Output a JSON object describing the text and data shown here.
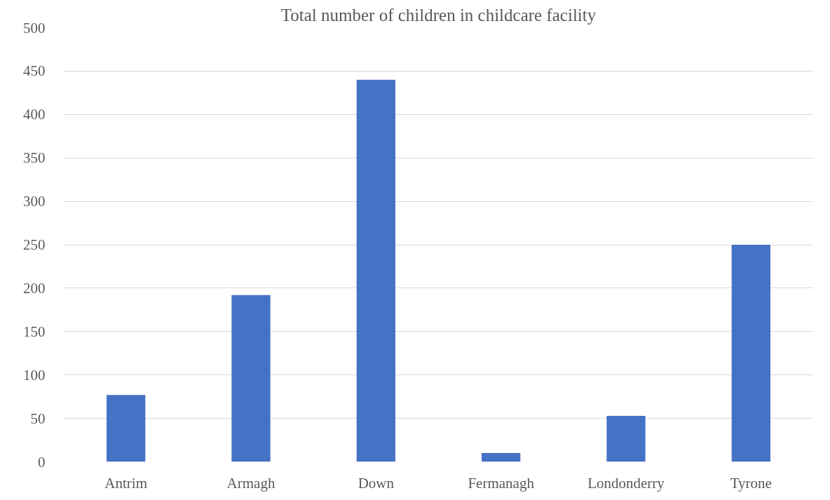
{
  "chart_data": {
    "type": "bar",
    "title": "Total number of children in childcare facility",
    "categories": [
      "Antrim",
      "Armagh",
      "Down",
      "Fermanagh",
      "Londonderry",
      "Tyrone"
    ],
    "values": [
      77,
      192,
      440,
      10,
      53,
      250
    ],
    "color": "#4472c4",
    "ylim": [
      0,
      500
    ],
    "yticks": [
      0,
      50,
      100,
      150,
      200,
      250,
      300,
      350,
      400,
      450,
      500
    ],
    "grid": "y"
  }
}
